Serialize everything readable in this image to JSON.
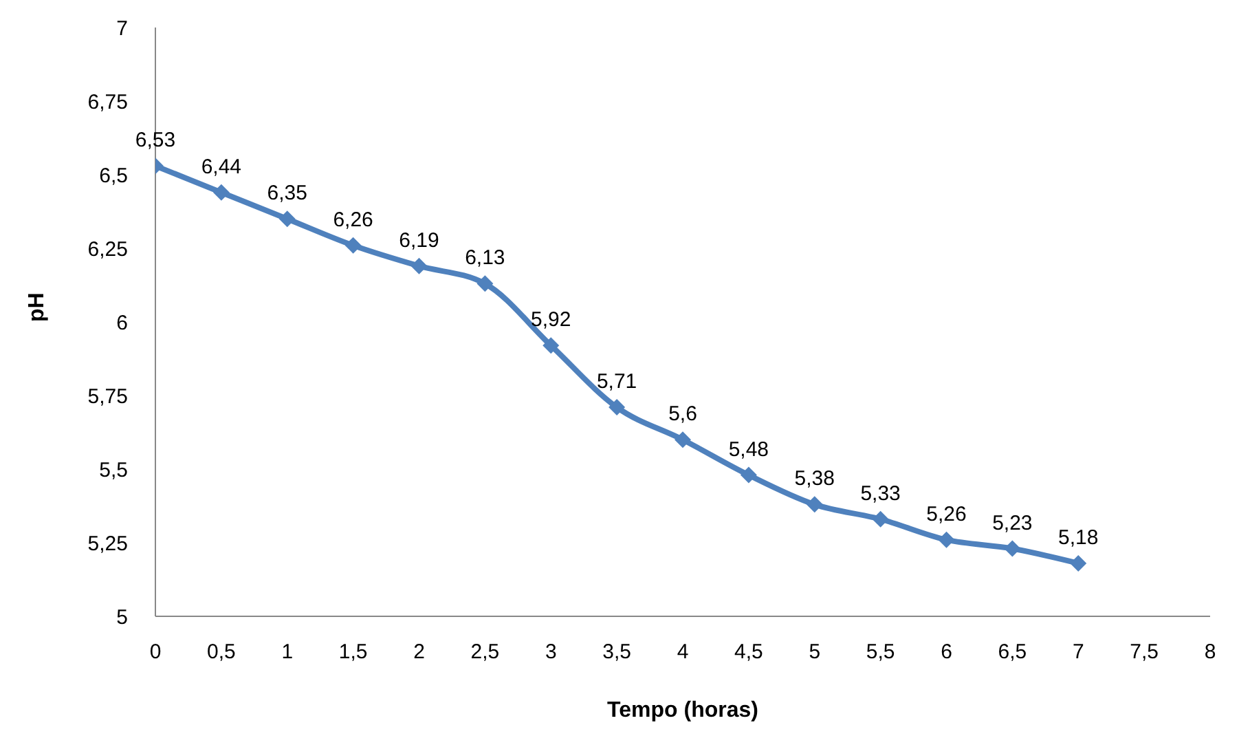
{
  "chart_data": {
    "type": "line",
    "xlabel": "Tempo (horas)",
    "ylabel": "pH",
    "x": [
      0,
      0.5,
      1,
      1.5,
      2,
      2.5,
      3,
      3.5,
      4,
      4.5,
      5,
      5.5,
      6,
      6.5,
      7
    ],
    "series": [
      {
        "color": "#4f81bd",
        "values": [
          6.53,
          6.44,
          6.35,
          6.26,
          6.19,
          6.13,
          5.92,
          5.71,
          5.6,
          5.48,
          5.38,
          5.33,
          5.26,
          5.23,
          5.18
        ],
        "value_labels": [
          "6,53",
          "6,44",
          "6,35",
          "6,26",
          "6,19",
          "6,13",
          "5,92",
          "5,71",
          "5,6",
          "5,48",
          "5,38",
          "5,33",
          "5,26",
          "5,23",
          "5,18"
        ]
      }
    ],
    "xlim": [
      0,
      8
    ],
    "xticks": [
      0,
      {
        "value": 0.5,
        "label": "0,5"
      },
      1,
      {
        "value": 1.5,
        "label": "1,5"
      },
      2,
      {
        "value": 2.5,
        "label": "2,5"
      },
      3,
      {
        "value": 3.5,
        "label": "3,5"
      },
      4,
      {
        "value": 4.5,
        "label": "4,5"
      },
      5,
      {
        "value": 5.5,
        "label": "5,5"
      },
      6,
      {
        "value": 6.5,
        "label": "6,5"
      },
      7,
      {
        "value": 7.5,
        "label": "7,5"
      },
      8
    ],
    "ylim": [
      5,
      7
    ],
    "yticks": [
      5,
      {
        "value": 5.25,
        "label": "5,25"
      },
      {
        "value": 5.5,
        "label": "5,5"
      },
      {
        "value": 5.75,
        "label": "5,75"
      },
      6,
      {
        "value": 6.25,
        "label": "6,25"
      },
      {
        "value": 6.5,
        "label": "6,5"
      },
      {
        "value": 6.75,
        "label": "6,75"
      },
      7
    ],
    "marker": "diamond",
    "line_style": "solid",
    "grid": false
  }
}
